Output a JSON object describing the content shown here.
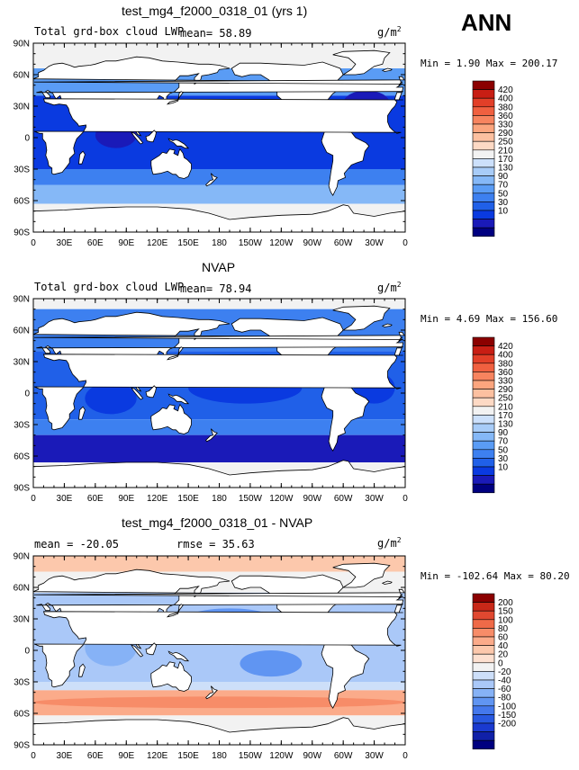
{
  "season": "ANN",
  "colors": {
    "land": "#ffffff",
    "coast": "#000000",
    "lwp_scale": [
      "#000080",
      "#1a1ab8",
      "#0a3ae0",
      "#2060e8",
      "#3d80f0",
      "#5a9cf5",
      "#85b8f7",
      "#a8ccf8",
      "#cce0fb",
      "#f2f2f2",
      "#fdd9c4",
      "#fcc0a0",
      "#fba57e",
      "#f7845f",
      "#f06040",
      "#e23f28",
      "#c81e14",
      "#8b0000"
    ],
    "diff_scale": [
      "#000080",
      "#1020a8",
      "#1a3ad0",
      "#2858e0",
      "#4478ec",
      "#6095f2",
      "#86b2f6",
      "#aac8f8",
      "#cddff9",
      "#f2f2f2",
      "#fde0d0",
      "#fcc8ac",
      "#fbab8a",
      "#f78c68",
      "#ef6a48",
      "#e04830",
      "#c82818",
      "#8b0000"
    ]
  },
  "panels": [
    {
      "title": "test_mg4_f2000_0318_01 (yrs 1)",
      "header_left": "Total grd-box cloud LWP",
      "header_mid": "mean=  58.89",
      "units": "g/m",
      "units_exp": "2",
      "minmax": "Min =    1.90 Max = 200.17",
      "colorbar_labels": [
        "420",
        "400",
        "380",
        "360",
        "330",
        "290",
        "250",
        "210",
        "170",
        "130",
        "90",
        "70",
        "50",
        "30",
        "10"
      ]
    },
    {
      "title": "NVAP",
      "header_left": "Total grd-box cloud LWP",
      "header_mid": "mean=  78.94",
      "units": "g/m",
      "units_exp": "2",
      "minmax": "Min =    4.69 Max = 156.60",
      "colorbar_labels": [
        "420",
        "400",
        "380",
        "360",
        "330",
        "290",
        "250",
        "210",
        "170",
        "130",
        "90",
        "70",
        "50",
        "30",
        "10"
      ]
    },
    {
      "title": "test_mg4_f2000_0318_01 - NVAP",
      "header_left": "mean = -20.05",
      "header_mid": "rmse =  35.63",
      "units": "g/m",
      "units_exp": "2",
      "minmax": "Min = -102.64 Max =  80.20",
      "colorbar_labels": [
        "200",
        "150",
        "100",
        "80",
        "60",
        "40",
        "20",
        "0",
        "-20",
        "-40",
        "-60",
        "-80",
        "-100",
        "-150",
        "-200"
      ]
    }
  ],
  "lat_labels": [
    "90N",
    "60N",
    "30N",
    "0",
    "30S",
    "60S",
    "90S"
  ],
  "lon_labels": [
    "0",
    "30E",
    "60E",
    "90E",
    "120E",
    "150E",
    "180",
    "150W",
    "120W",
    "90W",
    "60W",
    "30W",
    "0"
  ]
}
